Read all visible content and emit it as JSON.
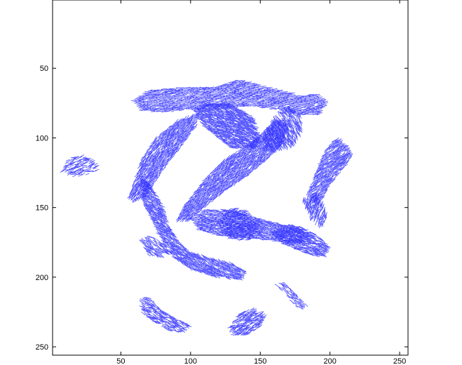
{
  "chart_data": {
    "type": "quiver",
    "title": "",
    "xlabel": "",
    "ylabel": "",
    "xlim": [
      1,
      256
    ],
    "ylim": [
      1,
      256
    ],
    "y_direction": "reverse",
    "grid": false,
    "legend": "none",
    "x_ticks": [
      50,
      100,
      150,
      200,
      250
    ],
    "y_ticks": [
      50,
      100,
      150,
      200,
      250
    ],
    "x_tick_labels": [
      "50",
      "100",
      "150",
      "200",
      "250"
    ],
    "y_tick_labels": [
      "50",
      "100",
      "150",
      "200",
      "250"
    ],
    "color": "#3333ff",
    "regions": [
      {
        "name": "top-band",
        "polygon": [
          [
            59,
            73
          ],
          [
            70,
            66
          ],
          [
            90,
            64
          ],
          [
            120,
            63
          ],
          [
            135,
            58
          ],
          [
            150,
            62
          ],
          [
            170,
            67
          ],
          [
            180,
            70
          ],
          [
            190,
            68
          ],
          [
            198,
            74
          ],
          [
            192,
            84
          ],
          [
            180,
            84
          ],
          [
            165,
            80
          ],
          [
            150,
            78
          ],
          [
            130,
            78
          ],
          [
            110,
            80
          ],
          [
            95,
            80
          ],
          [
            80,
            82
          ],
          [
            65,
            80
          ]
        ],
        "angle": -8,
        "density": 0.8
      },
      {
        "name": "central-blob-upper",
        "polygon": [
          [
            102,
            80
          ],
          [
            110,
            75
          ],
          [
            130,
            76
          ],
          [
            145,
            85
          ],
          [
            150,
            100
          ],
          [
            145,
            108
          ],
          [
            130,
            108
          ],
          [
            120,
            100
          ],
          [
            110,
            92
          ]
        ],
        "angle": 20,
        "density": 0.85
      },
      {
        "name": "left-diagonal-band",
        "polygon": [
          [
            56,
            142
          ],
          [
            60,
            130
          ],
          [
            65,
            115
          ],
          [
            75,
            100
          ],
          [
            90,
            88
          ],
          [
            106,
            82
          ],
          [
            104,
            92
          ],
          [
            95,
            104
          ],
          [
            84,
            118
          ],
          [
            76,
            130
          ],
          [
            68,
            142
          ],
          [
            60,
            146
          ]
        ],
        "angle": -50,
        "density": 0.8
      },
      {
        "name": "center-diagonal-band",
        "polygon": [
          [
            90,
            160
          ],
          [
            96,
            148
          ],
          [
            110,
            130
          ],
          [
            125,
            115
          ],
          [
            140,
            106
          ],
          [
            150,
            98
          ],
          [
            158,
            90
          ],
          [
            165,
            86
          ],
          [
            170,
            92
          ],
          [
            165,
            106
          ],
          [
            152,
            118
          ],
          [
            140,
            128
          ],
          [
            125,
            138
          ],
          [
            110,
            150
          ],
          [
            98,
            160
          ]
        ],
        "angle": -45,
        "density": 0.85
      },
      {
        "name": "right-upper-c",
        "polygon": [
          [
            153,
            95
          ],
          [
            163,
            82
          ],
          [
            172,
            78
          ],
          [
            180,
            84
          ],
          [
            180,
            95
          ],
          [
            174,
            105
          ],
          [
            162,
            110
          ],
          [
            152,
            108
          ]
        ],
        "angle": 60,
        "density": 0.6
      },
      {
        "name": "right-cluster",
        "polygon": [
          [
            190,
            125
          ],
          [
            196,
            110
          ],
          [
            204,
            100
          ],
          [
            212,
            105
          ],
          [
            216,
            114
          ],
          [
            208,
            124
          ],
          [
            200,
            134
          ],
          [
            196,
            142
          ],
          [
            190,
            150
          ],
          [
            184,
            140
          ]
        ],
        "angle": -40,
        "density": 0.8
      },
      {
        "name": "right-lower-arm",
        "polygon": [
          [
            180,
            144
          ],
          [
            190,
            140
          ],
          [
            196,
            150
          ],
          [
            198,
            158
          ],
          [
            194,
            164
          ],
          [
            186,
            158
          ]
        ],
        "angle": -70,
        "density": 0.6
      },
      {
        "name": "left-lower-arc",
        "polygon": [
          [
            64,
            128
          ],
          [
            70,
            132
          ],
          [
            80,
            148
          ],
          [
            84,
            162
          ],
          [
            90,
            172
          ],
          [
            100,
            182
          ],
          [
            114,
            186
          ],
          [
            130,
            190
          ],
          [
            140,
            196
          ],
          [
            136,
            202
          ],
          [
            118,
            200
          ],
          [
            100,
            194
          ],
          [
            88,
            186
          ],
          [
            80,
            176
          ],
          [
            74,
            162
          ],
          [
            66,
            146
          ]
        ],
        "angle": 35,
        "density": 0.8
      },
      {
        "name": "middle-right-band",
        "polygon": [
          [
            100,
            158
          ],
          [
            110,
            152
          ],
          [
            130,
            152
          ],
          [
            150,
            158
          ],
          [
            165,
            162
          ],
          [
            180,
            166
          ],
          [
            185,
            172
          ],
          [
            178,
            176
          ],
          [
            160,
            174
          ],
          [
            140,
            172
          ],
          [
            120,
            170
          ],
          [
            106,
            166
          ]
        ],
        "angle": 10,
        "density": 0.85
      },
      {
        "name": "right-middle-stripe",
        "polygon": [
          [
            158,
            168
          ],
          [
            170,
            162
          ],
          [
            180,
            164
          ],
          [
            192,
            170
          ],
          [
            200,
            178
          ],
          [
            196,
            186
          ],
          [
            186,
            184
          ],
          [
            176,
            180
          ],
          [
            166,
            176
          ]
        ],
        "angle": 20,
        "density": 0.7
      },
      {
        "name": "center-small-patch",
        "polygon": [
          [
            120,
            160
          ],
          [
            130,
            150
          ],
          [
            140,
            152
          ],
          [
            148,
            162
          ],
          [
            150,
            170
          ],
          [
            140,
            174
          ],
          [
            128,
            172
          ]
        ],
        "angle": -15,
        "density": 0.6
      },
      {
        "name": "left-small-patch",
        "polygon": [
          [
            64,
            174
          ],
          [
            72,
            170
          ],
          [
            80,
            176
          ],
          [
            86,
            182
          ],
          [
            80,
            186
          ],
          [
            70,
            184
          ]
        ],
        "angle": 40,
        "density": 0.5
      },
      {
        "name": "far-left-fragment",
        "polygon": [
          [
            8,
            124
          ],
          [
            12,
            116
          ],
          [
            20,
            112
          ],
          [
            30,
            116
          ],
          [
            36,
            122
          ],
          [
            28,
            126
          ],
          [
            18,
            128
          ]
        ],
        "angle": -20,
        "density": 0.45
      },
      {
        "name": "right-bottom-stripe",
        "polygon": [
          [
            162,
            206
          ],
          [
            168,
            204
          ],
          [
            176,
            212
          ],
          [
            184,
            220
          ],
          [
            180,
            224
          ],
          [
            172,
            218
          ]
        ],
        "angle": 40,
        "density": 0.5
      },
      {
        "name": "bottom-left-stripe",
        "polygon": [
          [
            64,
            216
          ],
          [
            70,
            214
          ],
          [
            80,
            224
          ],
          [
            90,
            230
          ],
          [
            100,
            234
          ],
          [
            96,
            240
          ],
          [
            84,
            238
          ],
          [
            74,
            232
          ],
          [
            66,
            226
          ]
        ],
        "angle": 25,
        "density": 0.6
      },
      {
        "name": "bottom-right-patch",
        "polygon": [
          [
            128,
            236
          ],
          [
            135,
            226
          ],
          [
            146,
            222
          ],
          [
            154,
            226
          ],
          [
            150,
            236
          ],
          [
            140,
            242
          ],
          [
            130,
            242
          ]
        ],
        "angle": -25,
        "density": 0.6
      }
    ]
  }
}
